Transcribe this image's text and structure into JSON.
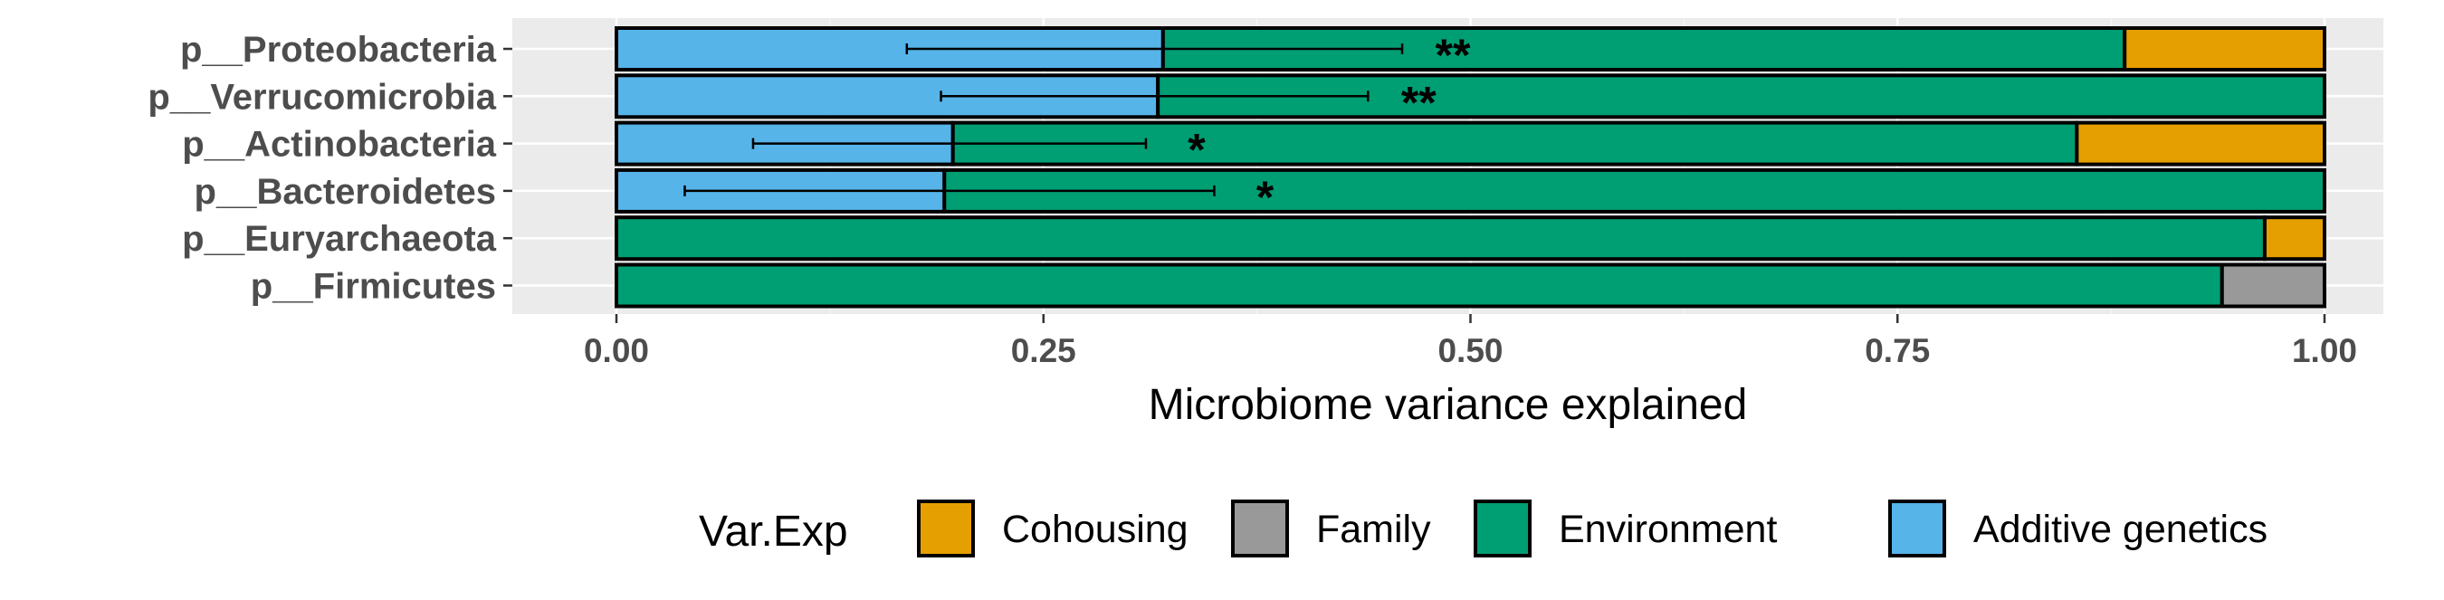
{
  "chart_data": {
    "type": "bar",
    "orientation": "horizontal",
    "stacked": true,
    "categories": [
      "p__Proteobacteria",
      "p__Verrucomicrobia",
      "p__Actinobacteria",
      "p__Bacteroidetes",
      "p__Euryarchaeota",
      "p__Firmicutes"
    ],
    "series": [
      {
        "name": "Additive genetics",
        "color": "#56B4E9",
        "values": [
          0.32,
          0.317,
          0.197,
          0.192,
          0.0,
          0.0
        ]
      },
      {
        "name": "Environment",
        "color": "#009E73",
        "values": [
          0.563,
          0.683,
          0.658,
          0.808,
          0.965,
          0.94
        ]
      },
      {
        "name": "Family",
        "color": "#999999",
        "values": [
          0.0,
          0.0,
          0.0,
          0.0,
          0.0,
          0.06
        ]
      },
      {
        "name": "Cohousing",
        "color": "#E69F00",
        "values": [
          0.117,
          0.0,
          0.145,
          0.0,
          0.035,
          0.0
        ]
      }
    ],
    "error_bars": [
      {
        "category": "p__Proteobacteria",
        "low": 0.17,
        "high": 0.46
      },
      {
        "category": "p__Verrucomicrobia",
        "low": 0.19,
        "high": 0.44
      },
      {
        "category": "p__Actinobacteria",
        "low": 0.08,
        "high": 0.31
      },
      {
        "category": "p__Bacteroidetes",
        "low": 0.04,
        "high": 0.35
      }
    ],
    "significance": [
      {
        "category": "p__Proteobacteria",
        "label": "**"
      },
      {
        "category": "p__Verrucomicrobia",
        "label": "**"
      },
      {
        "category": "p__Actinobacteria",
        "label": "*"
      },
      {
        "category": "p__Bacteroidetes",
        "label": "*"
      }
    ],
    "xlabel": "Microbiome variance explained",
    "ylabel": "",
    "xlim": [
      -0.06,
      1.06
    ],
    "xticks": [
      0.0,
      0.25,
      0.5,
      0.75,
      1.0
    ],
    "xtick_labels": [
      "0.00",
      "0.25",
      "0.50",
      "0.75",
      "1.00"
    ],
    "grid": true,
    "panel_background": "#EBEBEB",
    "legend": {
      "title": "Var.Exp",
      "position": "bottom",
      "entries": [
        {
          "label": "Cohousing",
          "color": "#E69F00"
        },
        {
          "label": "Family",
          "color": "#999999"
        },
        {
          "label": "Environment",
          "color": "#009E73"
        },
        {
          "label": "Additive genetics",
          "color": "#56B4E9"
        }
      ]
    }
  }
}
